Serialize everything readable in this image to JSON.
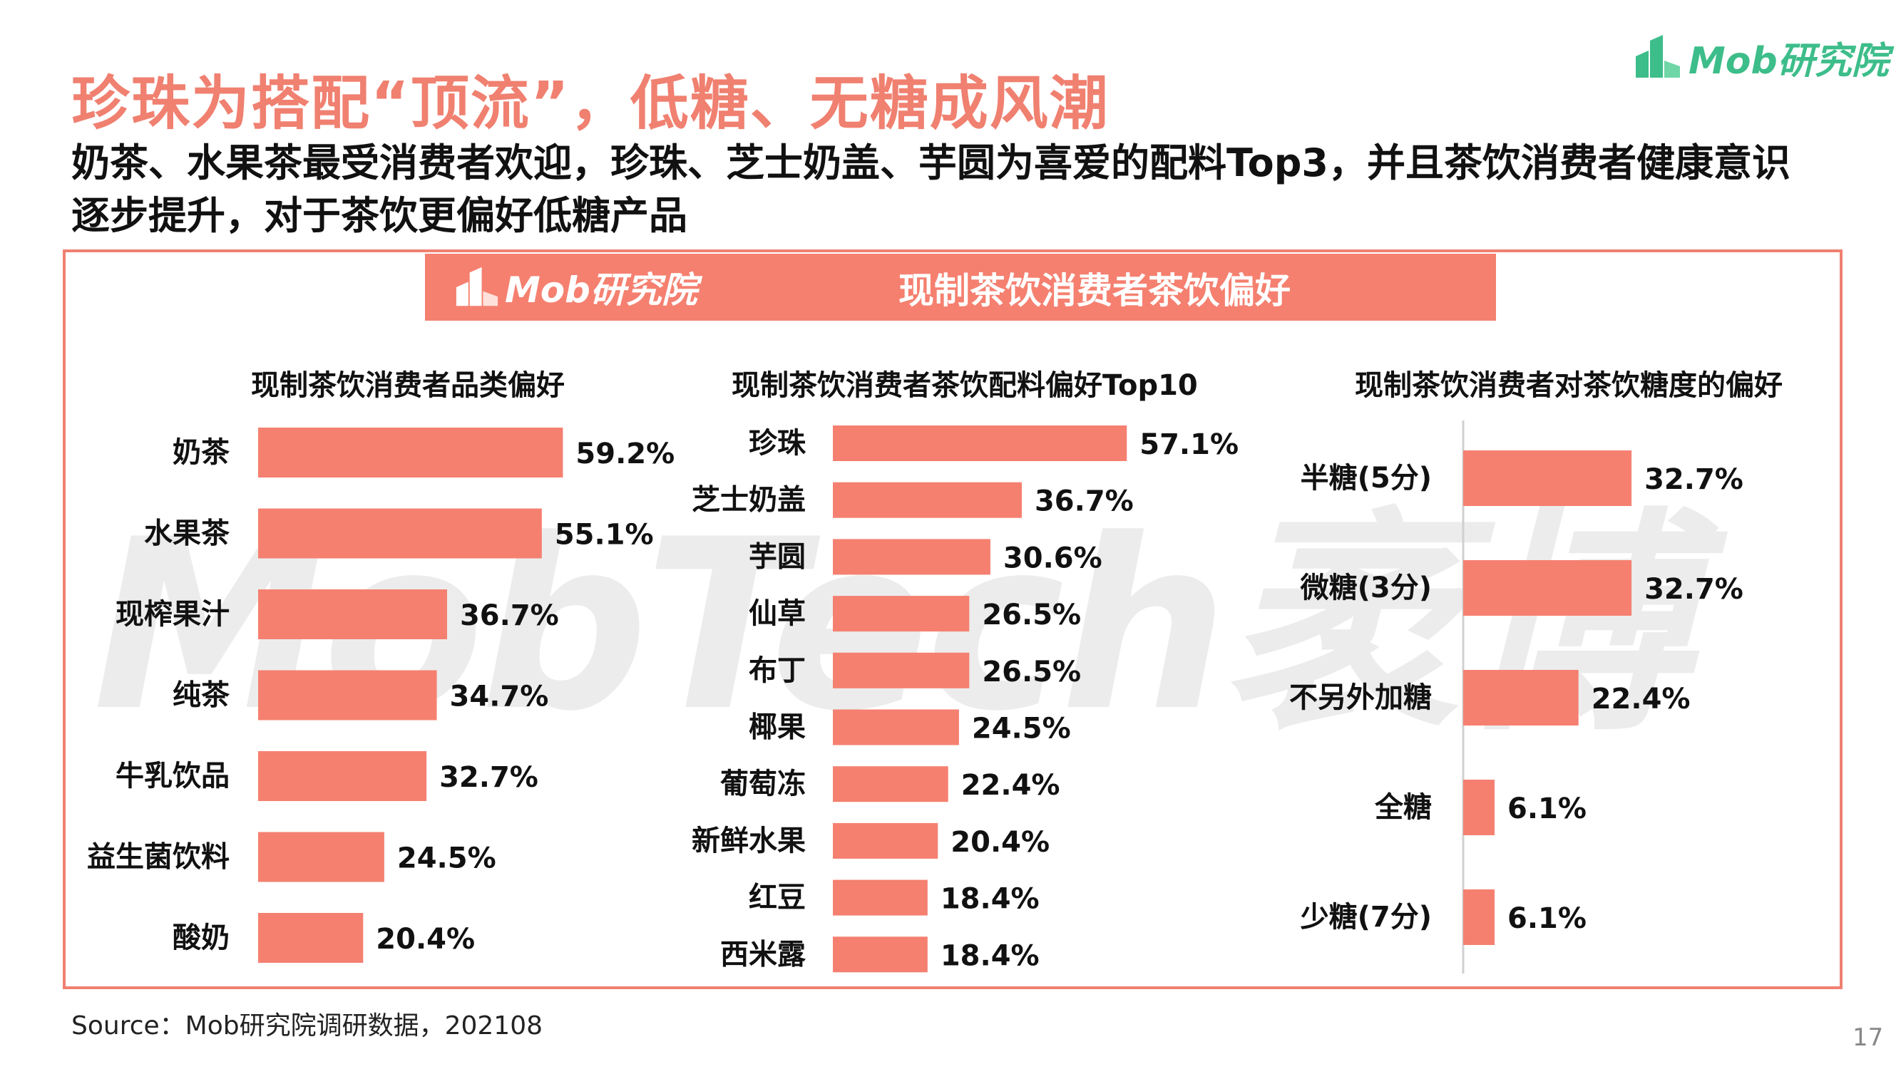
{
  "header": {
    "title": "珍珠为搭配“顶流”，低糖、无糖成风潮",
    "subtitle": "奶茶、水果茶最受消费者欢迎，珍珠、芝士奶盖、芋圆为喜爱的配料Top3，并且茶饮消费者健康意识逐步提升，对于茶饮更偏好低糖产品",
    "logo_text": "Mob研究院"
  },
  "panel": {
    "logo_text": "Mob研究院",
    "title": "现制茶饮消费者茶饮偏好",
    "watermark": "MobTech袤博"
  },
  "colors": {
    "bar": "#f58070",
    "title": "#f08070",
    "logo_green": "#3dbd8a",
    "axis": "#d0d0d0"
  },
  "chart_data": [
    {
      "type": "bar",
      "orientation": "horizontal",
      "title": "现制茶饮消费者品类偏好",
      "categories": [
        "奶茶",
        "水果茶",
        "现榨果汁",
        "纯茶",
        "牛乳饮品",
        "益生菌饮料",
        "酸奶"
      ],
      "values": [
        59.2,
        55.1,
        36.7,
        34.7,
        32.7,
        24.5,
        20.4
      ],
      "labels": [
        "59.2%",
        "55.1%",
        "36.7%",
        "34.7%",
        "32.7%",
        "24.5%",
        "20.4%"
      ],
      "unit": "%",
      "xlim": [
        0,
        100
      ],
      "grid": false
    },
    {
      "type": "bar",
      "orientation": "horizontal",
      "title": "现制茶饮消费者茶饮配料偏好Top10",
      "categories": [
        "珍珠",
        "芝士奶盖",
        "芋圆",
        "仙草",
        "布丁",
        "椰果",
        "葡萄冻",
        "新鲜水果",
        "红豆",
        "西米露"
      ],
      "values": [
        57.1,
        36.7,
        30.6,
        26.5,
        26.5,
        24.5,
        22.4,
        20.4,
        18.4,
        18.4
      ],
      "labels": [
        "57.1%",
        "36.7%",
        "30.6%",
        "26.5%",
        "26.5%",
        "24.5%",
        "22.4%",
        "20.4%",
        "18.4%",
        "18.4%"
      ],
      "unit": "%",
      "xlim": [
        0,
        100
      ],
      "grid": false
    },
    {
      "type": "bar",
      "orientation": "horizontal",
      "title": "现制茶饮消费者对茶饮糖度的偏好",
      "categories": [
        "半糖(5分)",
        "微糖(3分)",
        "不另外加糖",
        "全糖",
        "少糖(7分)"
      ],
      "values": [
        32.7,
        32.7,
        22.4,
        6.1,
        6.1
      ],
      "labels": [
        "32.7%",
        "32.7%",
        "22.4%",
        "6.1%",
        "6.1%"
      ],
      "unit": "%",
      "xlim": [
        0,
        100
      ],
      "grid": false
    }
  ],
  "footer": {
    "source": "Source：Mob研究院调研数据，202108",
    "page_number": "17"
  }
}
